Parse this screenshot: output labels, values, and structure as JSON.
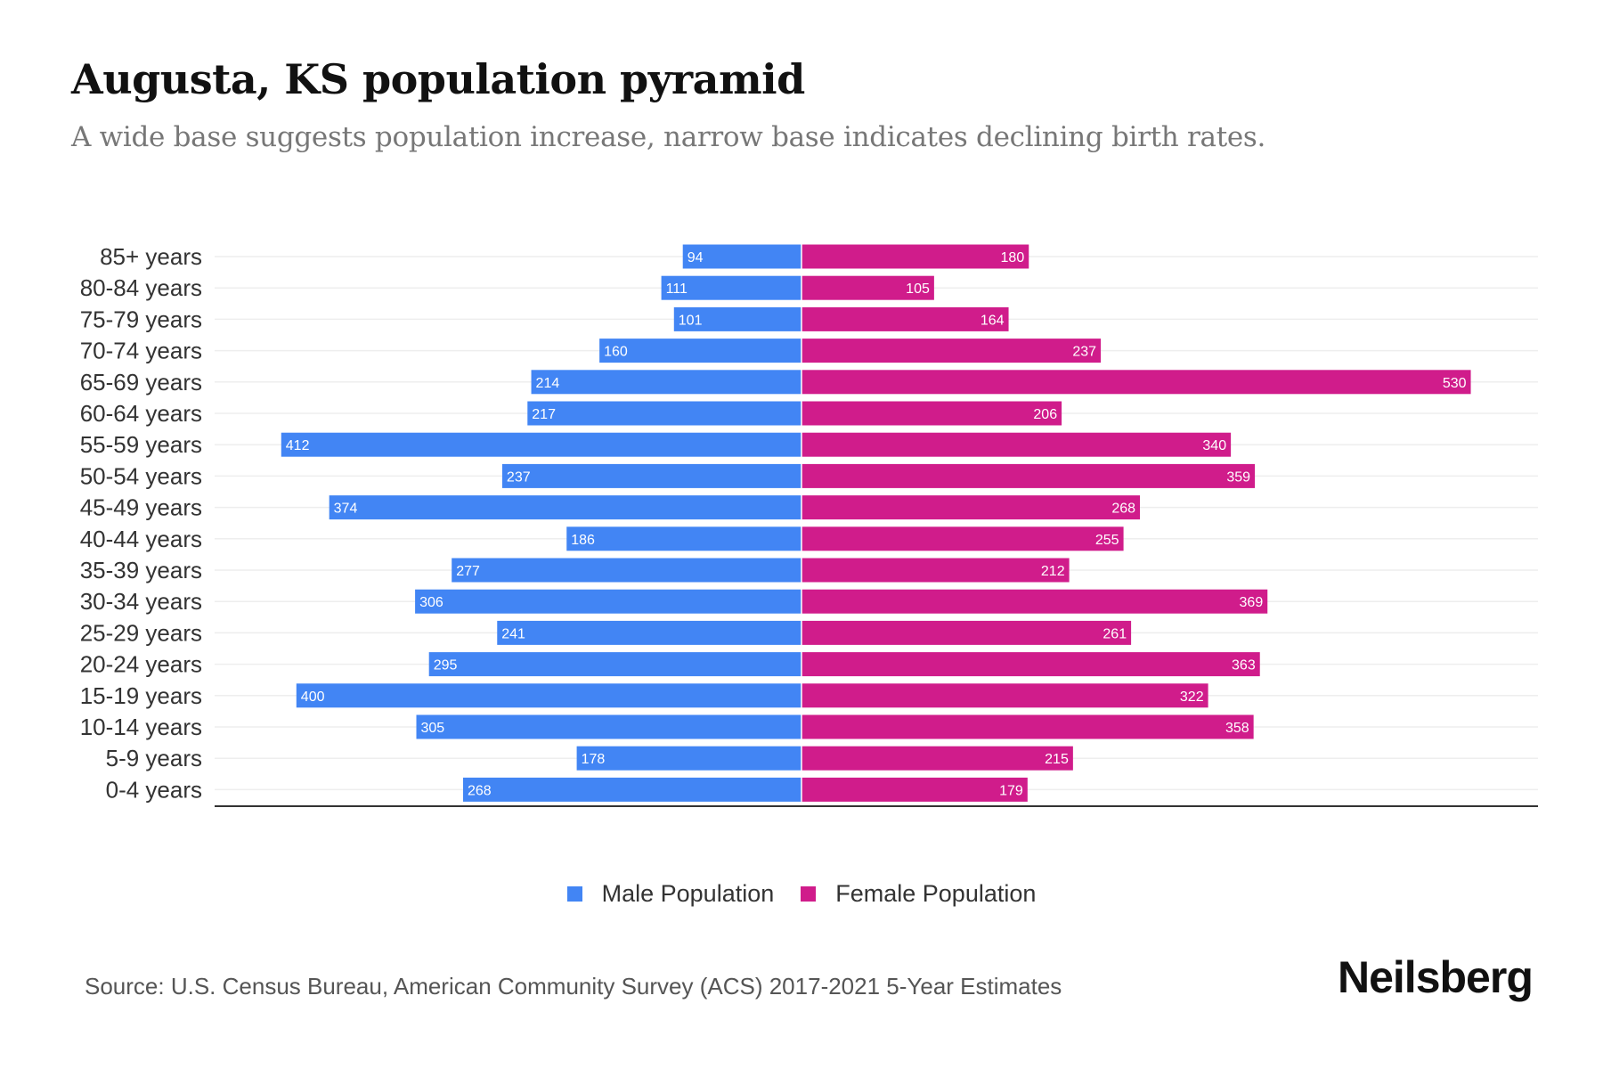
{
  "title": "Augusta, KS population pyramid",
  "subtitle": "A wide base suggests population increase, narrow base indicates declining birth rates.",
  "source": "Source: U.S. Census Bureau, American Community Survey (ACS) 2017-2021 5-Year Estimates",
  "logo": "Neilsberg",
  "colors": {
    "male": "#4285f4",
    "female": "#d01c8b"
  },
  "chart_data": {
    "type": "bar",
    "orientation": "horizontal-diverging",
    "title": "Augusta, KS population pyramid",
    "categories": [
      "85+ years",
      "80-84 years",
      "75-79 years",
      "70-74 years",
      "65-69 years",
      "60-64 years",
      "55-59 years",
      "50-54 years",
      "45-49 years",
      "40-44 years",
      "35-39 years",
      "30-34 years",
      "25-29 years",
      "20-24 years",
      "15-19 years",
      "10-14 years",
      "5-9 years",
      "0-4 years"
    ],
    "series": [
      {
        "name": "Male Population",
        "values": [
          94,
          111,
          101,
          160,
          214,
          217,
          412,
          237,
          374,
          186,
          277,
          306,
          241,
          295,
          400,
          305,
          178,
          268
        ]
      },
      {
        "name": "Female Population",
        "values": [
          180,
          105,
          164,
          237,
          530,
          206,
          340,
          359,
          268,
          255,
          212,
          369,
          261,
          363,
          322,
          358,
          215,
          179
        ]
      }
    ],
    "legend": "bottom-center",
    "grid": true
  }
}
